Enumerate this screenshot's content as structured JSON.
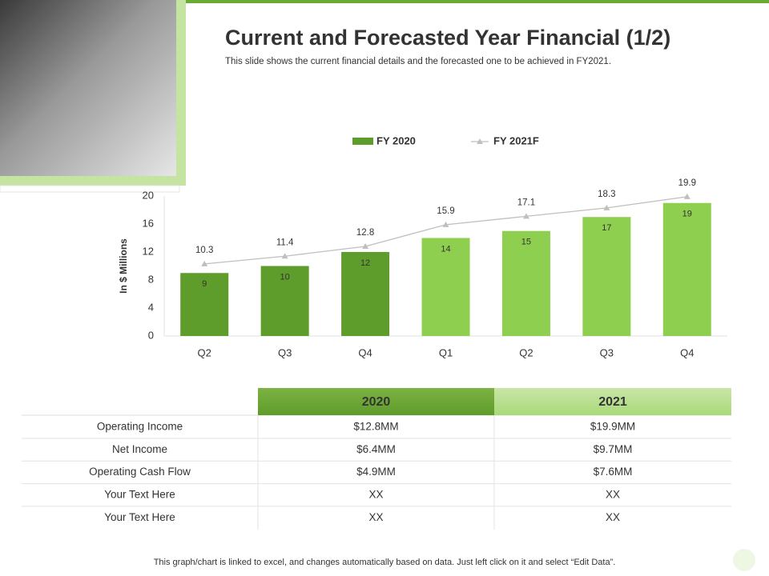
{
  "title": "Current and Forecasted Year Financial (1/2)",
  "subtitle": "This slide shows the current financial details and the forecasted one to be achieved in FY2021.",
  "chart_data": {
    "type": "bar",
    "categories": [
      "Q2",
      "Q3",
      "Q4",
      "Q1",
      "Q2",
      "Q3",
      "Q4"
    ],
    "ylabel": "In $ Millions",
    "ylim": [
      0,
      20
    ],
    "yticks": [
      0,
      4,
      8,
      12,
      16,
      20
    ],
    "series": [
      {
        "name": "FY 2020",
        "type": "bar",
        "color": "#5e9c2c",
        "colors": [
          "#5e9c2c",
          "#5e9c2c",
          "#5e9c2c",
          "#8fcf4f",
          "#8fcf4f",
          "#8fcf4f",
          "#8fcf4f"
        ],
        "values": [
          9,
          10,
          12,
          14,
          15,
          17,
          19
        ]
      },
      {
        "name": "FY 2021F",
        "type": "line",
        "color": "#bfbfbf",
        "values": [
          10.3,
          11.4,
          12.8,
          15.9,
          17.1,
          18.3,
          19.9
        ]
      }
    ]
  },
  "table": {
    "header": [
      "2020",
      "2021"
    ],
    "rows": [
      [
        "Operating Income",
        "$12.8MM",
        "$19.9MM"
      ],
      [
        "Net Income",
        "$6.4MM",
        "$9.7MM"
      ],
      [
        "Operating Cash Flow",
        "$4.9MM",
        "$7.6MM"
      ],
      [
        "Your Text Here",
        "XX",
        "XX"
      ],
      [
        "Your Text Here",
        "XX",
        "XX"
      ]
    ]
  },
  "footer": "This graph/chart is linked to excel, and changes automatically based on data. Just left click on it and select “Edit Data”."
}
